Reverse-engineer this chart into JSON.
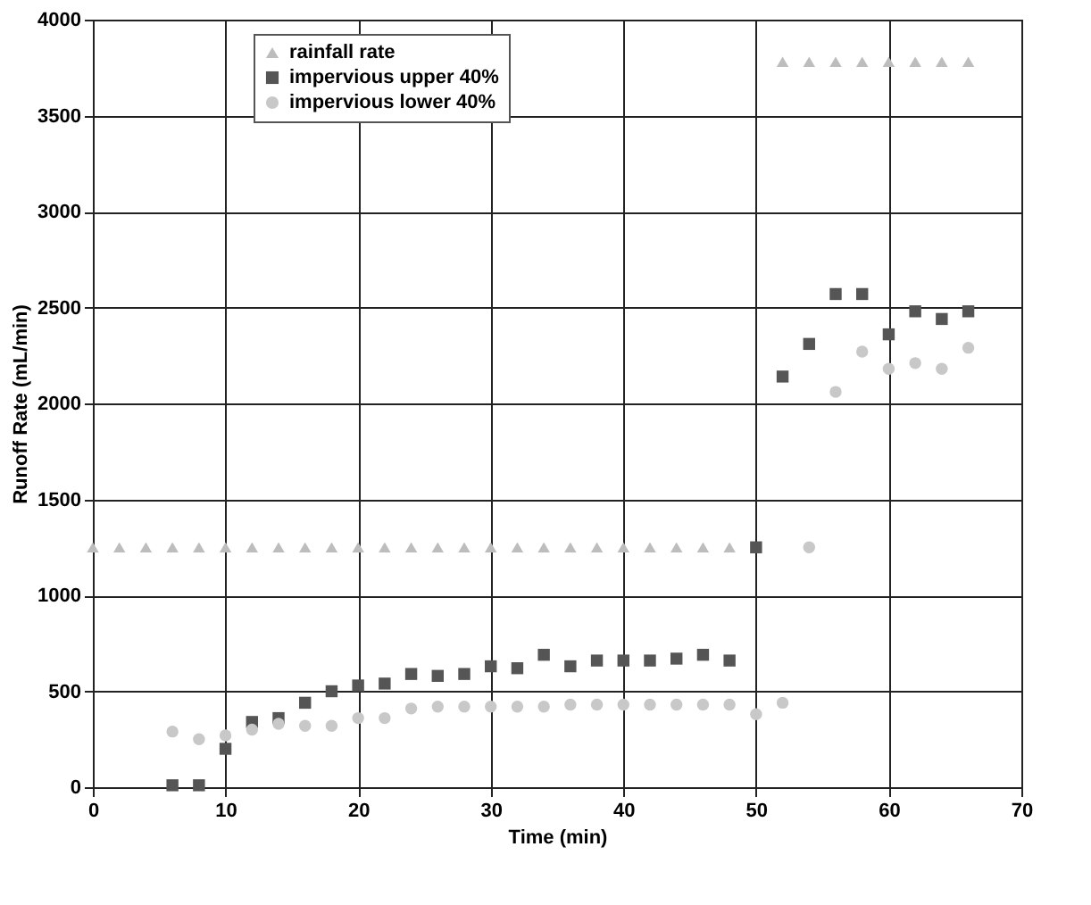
{
  "chart_data": {
    "type": "scatter",
    "xlabel": "Time (min)",
    "ylabel": "Runoff Rate (mL/min)",
    "xlim": [
      0,
      70
    ],
    "xticks": [
      0,
      10,
      20,
      30,
      40,
      50,
      60,
      70
    ],
    "ylim": [
      0,
      4000
    ],
    "yticks": [
      0,
      500,
      1000,
      1500,
      2000,
      2500,
      3000,
      3500,
      4000
    ],
    "grid": true,
    "legend": "top left",
    "series": [
      {
        "name": "rainfall rate",
        "color": "#bdbdbd",
        "marker": "triangle",
        "x": [
          0,
          2,
          4,
          6,
          8,
          10,
          12,
          14,
          16,
          18,
          20,
          22,
          24,
          26,
          28,
          30,
          32,
          34,
          36,
          38,
          40,
          42,
          44,
          46,
          48,
          52,
          54,
          56,
          58,
          60,
          62,
          64,
          66
        ],
        "values": [
          1250,
          1250,
          1250,
          1250,
          1250,
          1250,
          1250,
          1250,
          1250,
          1250,
          1250,
          1250,
          1250,
          1250,
          1250,
          1250,
          1250,
          1250,
          1250,
          1250,
          1250,
          1250,
          1250,
          1250,
          1250,
          3780,
          3780,
          3780,
          3780,
          3780,
          3780,
          3780,
          3780
        ]
      },
      {
        "name": "impervious upper 40%",
        "color": "#555555",
        "marker": "square",
        "x": [
          6,
          8,
          10,
          12,
          14,
          16,
          18,
          20,
          22,
          24,
          26,
          28,
          30,
          32,
          34,
          36,
          38,
          40,
          42,
          44,
          46,
          48,
          50,
          52,
          54,
          56,
          58,
          60,
          62,
          64,
          66
        ],
        "values": [
          10,
          10,
          200,
          340,
          360,
          440,
          500,
          530,
          540,
          590,
          580,
          590,
          630,
          620,
          690,
          630,
          660,
          660,
          660,
          670,
          690,
          660,
          1250,
          2140,
          2310,
          2570,
          2570,
          2360,
          2480,
          2440,
          2480
        ]
      },
      {
        "name": "impervious lower 40%",
        "color": "#c8c8c8",
        "marker": "circle",
        "x": [
          6,
          8,
          10,
          12,
          14,
          16,
          18,
          20,
          22,
          24,
          26,
          28,
          30,
          32,
          34,
          36,
          38,
          40,
          42,
          44,
          46,
          48,
          50,
          52,
          54,
          56,
          58,
          60,
          62,
          64,
          66
        ],
        "values": [
          290,
          250,
          270,
          300,
          330,
          320,
          320,
          360,
          360,
          410,
          420,
          420,
          420,
          420,
          420,
          430,
          430,
          430,
          430,
          430,
          430,
          430,
          380,
          440,
          1250,
          2060,
          2270,
          2180,
          2210,
          2180,
          2290
        ]
      }
    ]
  }
}
